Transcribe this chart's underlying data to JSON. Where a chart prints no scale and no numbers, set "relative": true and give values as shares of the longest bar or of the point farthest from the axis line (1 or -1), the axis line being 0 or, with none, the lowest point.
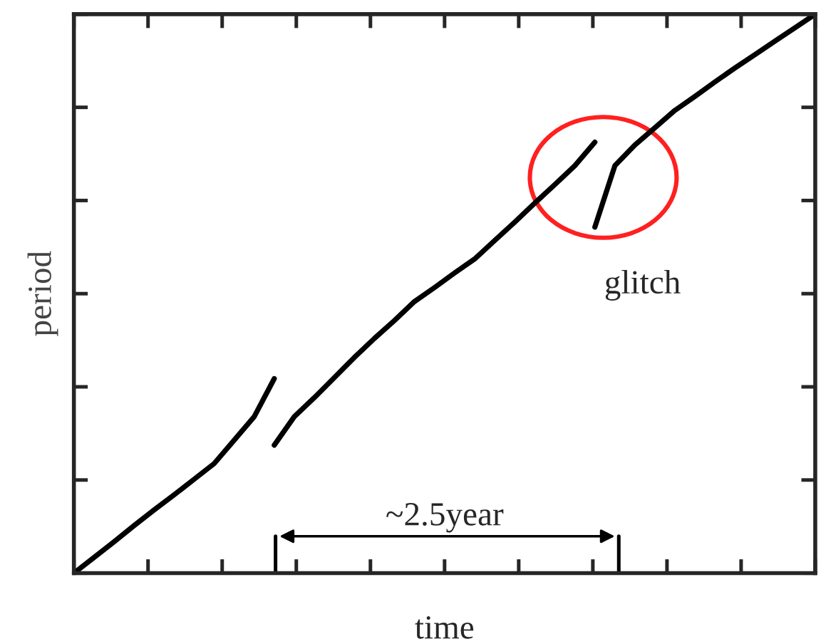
{
  "chart_data": {
    "type": "line",
    "relative": true,
    "xlabel": "time",
    "ylabel": "period",
    "tick_labels": false,
    "grid": false,
    "legend": false,
    "categories": [
      null,
      null,
      null,
      null,
      null,
      null,
      null,
      null,
      null,
      null,
      null,
      null,
      null,
      null,
      null,
      null,
      null,
      null,
      null,
      null,
      null,
      null,
      null,
      null,
      null,
      null,
      null,
      null,
      null,
      null,
      null,
      null,
      null,
      null,
      null,
      null,
      null,
      null
    ],
    "series": [
      {
        "color": "#000000",
        "values": [
          0,
          0.028,
          0.056,
          0.085,
          0.113,
          0.14,
          0.168,
          0.196,
          0.238,
          0.28,
          0.348,
          null,
          null,
          null,
          null,
          null,
          null,
          null,
          null,
          null,
          null,
          null,
          null,
          null,
          null,
          null,
          null,
          null,
          null,
          null,
          null,
          null,
          null,
          null,
          null,
          null,
          null,
          null
        ]
      },
      {
        "color": "#000000",
        "values": [
          null,
          null,
          null,
          null,
          null,
          null,
          null,
          null,
          null,
          null,
          0.229,
          0.28,
          0.314,
          0.35,
          0.386,
          0.42,
          0.452,
          0.486,
          0.511,
          0.537,
          0.562,
          0.595,
          0.628,
          0.662,
          0.695,
          0.729,
          0.771,
          null,
          null,
          null,
          null,
          null,
          null,
          null,
          null,
          null,
          null,
          null
        ]
      },
      {
        "color": "#000000",
        "values": [
          null,
          null,
          null,
          null,
          null,
          null,
          null,
          null,
          null,
          null,
          null,
          null,
          null,
          null,
          null,
          null,
          null,
          null,
          null,
          null,
          null,
          null,
          null,
          null,
          null,
          null,
          0.619,
          0.729,
          0.766,
          0.797,
          0.828,
          0.853,
          0.879,
          0.904,
          0.928,
          0.952,
          0.976,
          1
        ]
      }
    ],
    "annotations": [
      "glitch",
      "~2.5year"
    ]
  }
}
